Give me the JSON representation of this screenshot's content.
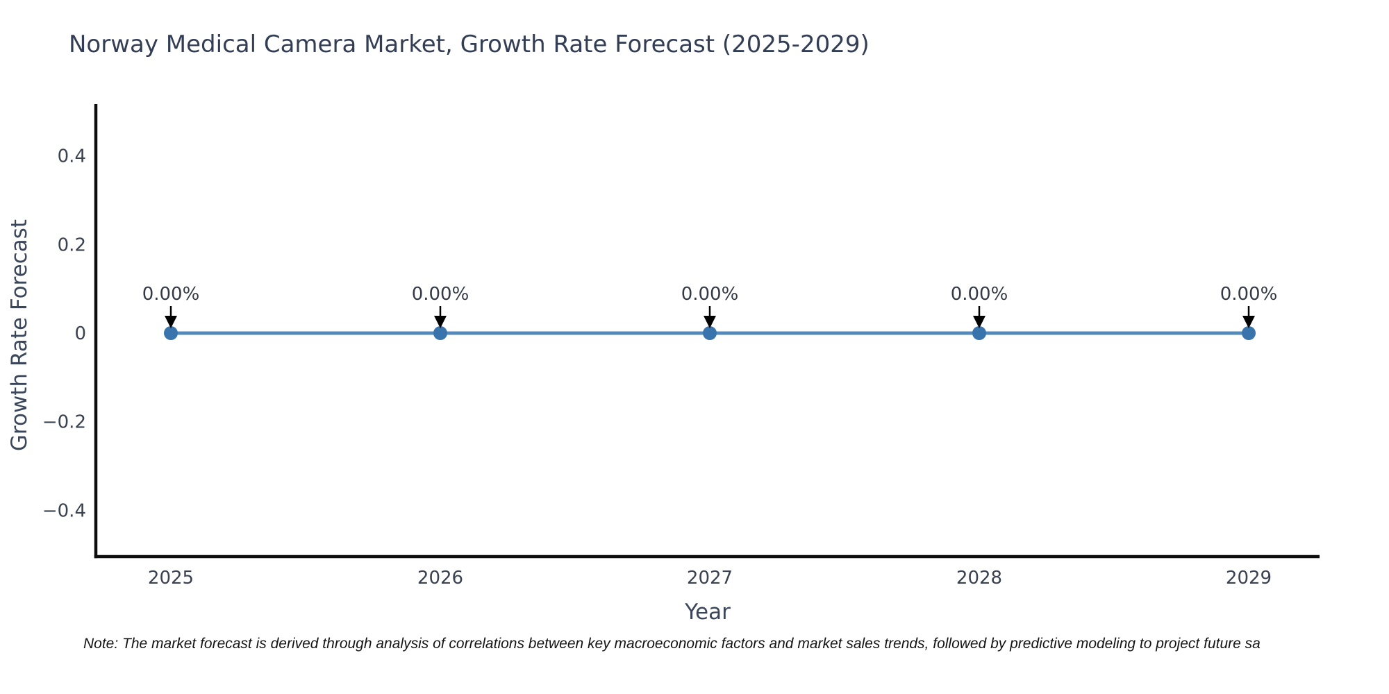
{
  "chart_data": {
    "type": "line",
    "title": "Norway Medical Camera Market, Growth Rate Forecast (2025-2029)",
    "xlabel": "Year",
    "ylabel": "Growth Rate Forecast",
    "categories": [
      "2025",
      "2026",
      "2027",
      "2028",
      "2029"
    ],
    "series": [
      {
        "name": "Growth Rate Forecast",
        "values": [
          0,
          0,
          0,
          0,
          0
        ]
      }
    ],
    "point_labels": [
      "0.00%",
      "0.00%",
      "0.00%",
      "0.00%",
      "0.00%"
    ],
    "y_ticks": [
      0.4,
      0.2,
      0,
      -0.2,
      -0.4
    ],
    "ylim": [
      -0.5,
      0.52
    ],
    "grid": false,
    "legend": "none",
    "colors": {
      "line": "#5589ba",
      "marker": "#3a74ad",
      "axis": "#0d0d0d",
      "tick_label": "#3a4150",
      "annotation_text": "#333a46",
      "annotation_arrow": "#000000"
    }
  },
  "note": "Note: The market forecast is derived through analysis of correlations between key macroeconomic factors and market sales trends, followed by predictive modeling to project future sa"
}
